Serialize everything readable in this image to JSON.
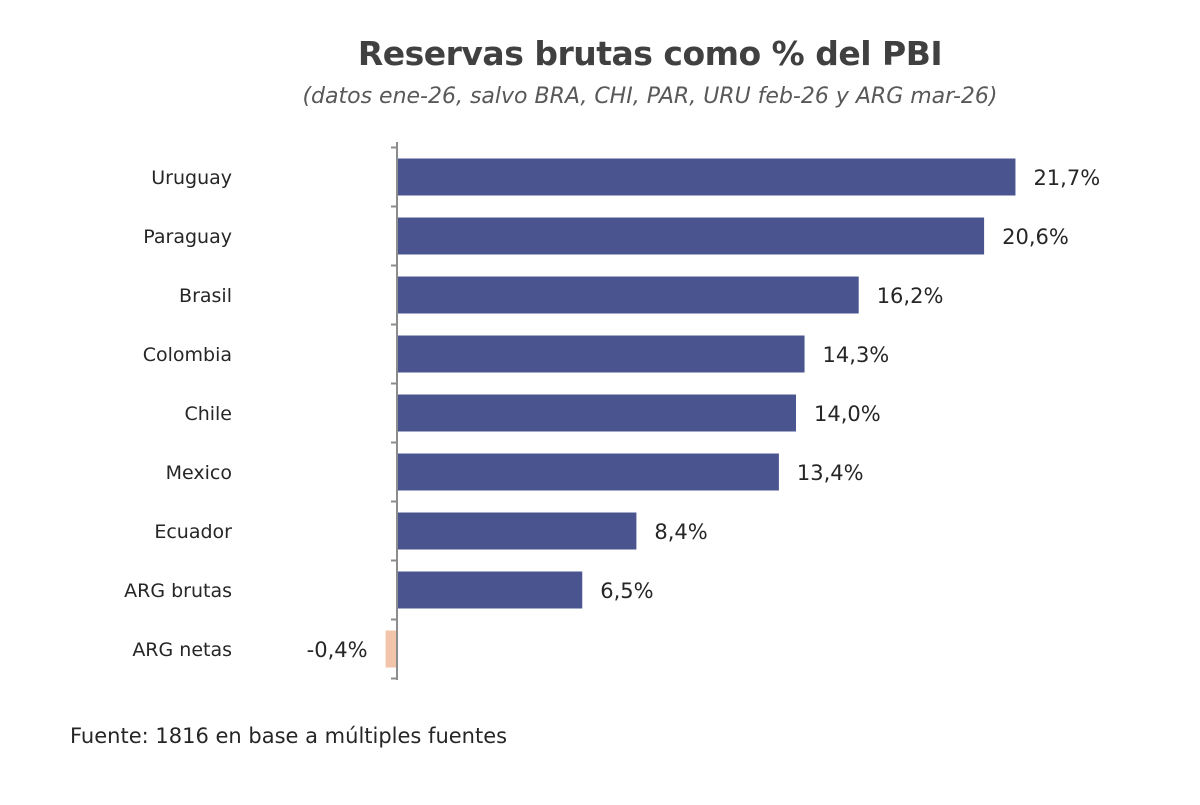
{
  "chart_data": {
    "type": "bar",
    "orientation": "horizontal",
    "title": "Reservas brutas como % del PBI",
    "subtitle": "(datos ene-26, salvo BRA, CHI, PAR, URU feb-26 y ARG mar-26)",
    "categories": [
      "Uruguay",
      "Paraguay",
      "Brasil",
      "Colombia",
      "Chile",
      "Mexico",
      "Ecuador",
      "ARG brutas",
      "ARG netas"
    ],
    "values": [
      21.7,
      20.6,
      16.2,
      14.3,
      14.0,
      13.4,
      8.4,
      6.5,
      -0.4
    ],
    "data_labels": [
      "21,7%",
      "20,6%",
      "16,2%",
      "14,3%",
      "14,0%",
      "13,4%",
      "8,4%",
      "6,5%",
      "-0,4%"
    ],
    "colors": {
      "positive": "#4a5590",
      "negative": "#f2c4aa",
      "axis": "#8c8c8c",
      "text": "#262626"
    },
    "xlim": [
      -0.5,
      22
    ],
    "xlabel": "",
    "ylabel": "",
    "grid": false
  },
  "source": "Fuente: 1816 en base a múltiples fuentes"
}
